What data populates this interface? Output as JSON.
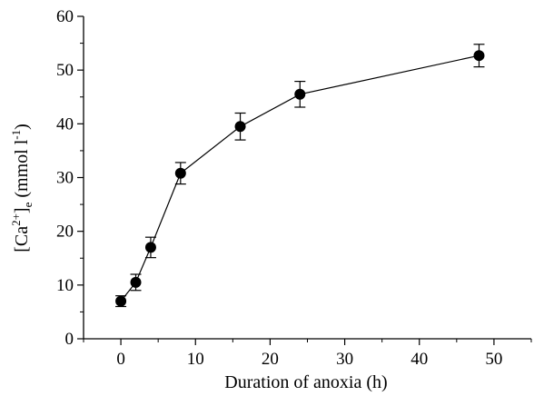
{
  "chart_data": {
    "type": "scatter",
    "title": "",
    "xlabel": "Duration of anoxia (h)",
    "ylabel": "[Ca²⁺]e (mmol l⁻¹)",
    "ylabel_parts": {
      "open": "[Ca",
      "sup1": "2+",
      "close": "]",
      "sub": "e",
      "mid": " (mmol l",
      "sup2": "-1",
      "end": ")"
    },
    "xlim": [
      -5,
      55
    ],
    "ylim": [
      0,
      60
    ],
    "xticks": [
      0,
      10,
      20,
      30,
      40,
      50
    ],
    "yticks": [
      0,
      10,
      20,
      30,
      40,
      50,
      60
    ],
    "grid": false,
    "series": [
      {
        "x": [
          0,
          2,
          4,
          8,
          16,
          24,
          48
        ],
        "y": [
          7.0,
          10.5,
          17.0,
          30.8,
          39.5,
          45.5,
          52.7
        ],
        "error": [
          1.0,
          1.5,
          1.9,
          2.0,
          2.5,
          2.4,
          2.1
        ],
        "color": "#000000",
        "marker": "filled-circle",
        "connected": true
      }
    ]
  }
}
